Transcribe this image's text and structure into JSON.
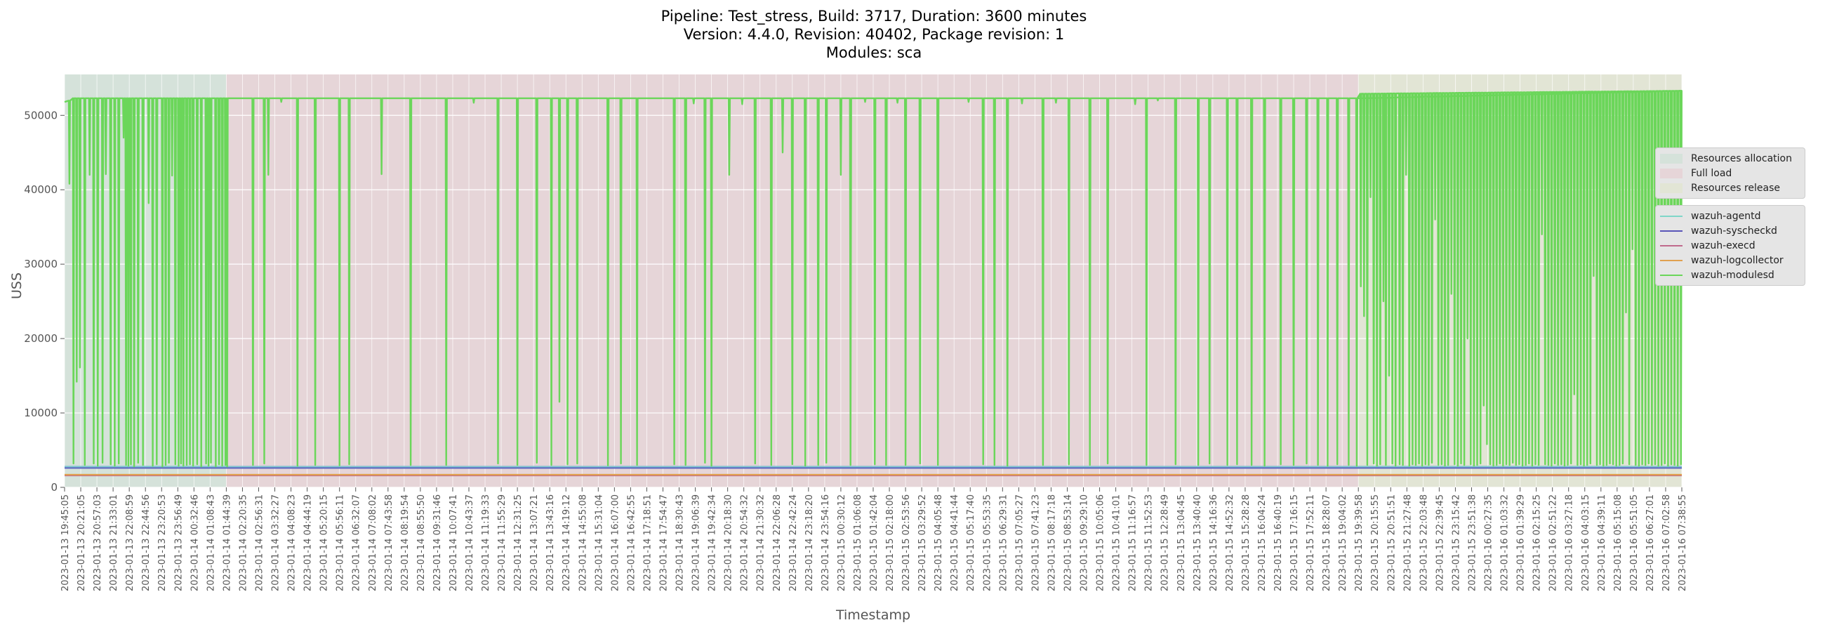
{
  "chart_data": {
    "type": "line",
    "title_lines": [
      "Pipeline: Test_stress, Build: 3717, Duration: 3600 minutes",
      "Version: 4.4.0, Revision: 40402, Package revision: 1",
      "Modules: sca"
    ],
    "xlabel": "Timestamp",
    "ylabel": "USS",
    "ylim": [
      0,
      55500
    ],
    "yticks": [
      0,
      10000,
      20000,
      30000,
      40000,
      50000
    ],
    "grid": true,
    "legend_placement": "right, outside plot",
    "x_ticks": [
      "2023-01-13 19:45:05",
      "2023-01-13 20:21:05",
      "2023-01-13 20:57:03",
      "2023-01-13 21:33:01",
      "2023-01-13 22:08:59",
      "2023-01-13 22:44:56",
      "2023-01-13 23:20:53",
      "2023-01-13 23:56:49",
      "2023-01-14 00:32:46",
      "2023-01-14 01:08:43",
      "2023-01-14 01:44:39",
      "2023-01-14 02:20:35",
      "2023-01-14 02:56:31",
      "2023-01-14 03:32:27",
      "2023-01-14 04:08:23",
      "2023-01-14 04:44:19",
      "2023-01-14 05:20:15",
      "2023-01-14 05:56:11",
      "2023-01-14 06:32:07",
      "2023-01-14 07:08:02",
      "2023-01-14 07:43:58",
      "2023-01-14 08:19:54",
      "2023-01-14 08:55:50",
      "2023-01-14 09:31:46",
      "2023-01-14 10:07:41",
      "2023-01-14 10:43:37",
      "2023-01-14 11:19:33",
      "2023-01-14 11:55:29",
      "2023-01-14 12:31:25",
      "2023-01-14 13:07:21",
      "2023-01-14 13:43:16",
      "2023-01-14 14:19:12",
      "2023-01-14 14:55:08",
      "2023-01-14 15:31:04",
      "2023-01-14 16:07:00",
      "2023-01-14 16:42:55",
      "2023-01-14 17:18:51",
      "2023-01-14 17:54:47",
      "2023-01-14 18:30:43",
      "2023-01-14 19:06:39",
      "2023-01-14 19:42:34",
      "2023-01-14 20:18:30",
      "2023-01-14 20:54:32",
      "2023-01-14 21:30:32",
      "2023-01-14 22:06:28",
      "2023-01-14 22:42:24",
      "2023-01-14 23:18:20",
      "2023-01-14 23:54:16",
      "2023-01-15 00:30:12",
      "2023-01-15 01:06:08",
      "2023-01-15 01:42:04",
      "2023-01-15 02:18:00",
      "2023-01-15 02:53:56",
      "2023-01-15 03:29:52",
      "2023-01-15 04:05:48",
      "2023-01-15 04:41:44",
      "2023-01-15 05:17:40",
      "2023-01-15 05:53:35",
      "2023-01-15 06:29:31",
      "2023-01-15 07:05:27",
      "2023-01-15 07:41:23",
      "2023-01-15 08:17:18",
      "2023-01-15 08:53:14",
      "2023-01-15 09:29:10",
      "2023-01-15 10:05:06",
      "2023-01-15 10:41:01",
      "2023-01-15 11:16:57",
      "2023-01-15 11:52:53",
      "2023-01-15 12:28:49",
      "2023-01-15 13:04:45",
      "2023-01-15 13:40:40",
      "2023-01-15 14:16:36",
      "2023-01-15 14:52:32",
      "2023-01-15 15:28:28",
      "2023-01-15 16:04:24",
      "2023-01-15 16:40:19",
      "2023-01-15 17:16:15",
      "2023-01-15 17:52:11",
      "2023-01-15 18:28:07",
      "2023-01-15 19:04:02",
      "2023-01-15 19:39:58",
      "2023-01-15 20:15:55",
      "2023-01-15 20:51:51",
      "2023-01-15 21:27:48",
      "2023-01-15 22:03:48",
      "2023-01-15 22:39:45",
      "2023-01-15 23:15:42",
      "2023-01-15 23:51:38",
      "2023-01-16 00:27:35",
      "2023-01-16 01:03:32",
      "2023-01-16 01:39:29",
      "2023-01-16 02:15:25",
      "2023-01-16 02:51:22",
      "2023-01-16 03:27:18",
      "2023-01-16 04:03:15",
      "2023-01-16 04:39:11",
      "2023-01-16 05:15:08",
      "2023-01-16 05:51:05",
      "2023-01-16 06:27:01",
      "2023-01-16 07:02:58",
      "2023-01-16 07:38:55"
    ],
    "phases": [
      {
        "name": "Resources allocation",
        "start_index": 0,
        "end_index": 10,
        "color": "#d5e2da"
      },
      {
        "name": "Full load",
        "start_index": 10,
        "end_index": 80,
        "color": "#e6d5d8"
      },
      {
        "name": "Resources release",
        "start_index": 80,
        "end_index": 100,
        "color": "#e2e5d5"
      }
    ],
    "series": [
      {
        "name": "wazuh-agentd",
        "color": "#7fd6c8",
        "baseline": 2750
      },
      {
        "name": "wazuh-syscheckd",
        "color": "#5a55b8",
        "baseline": 2600
      },
      {
        "name": "wazuh-execd",
        "color": "#c06a8c",
        "baseline": 1600
      },
      {
        "name": "wazuh-logcollector",
        "color": "#e0a050",
        "baseline": 1700
      },
      {
        "name": "wazuh-modulesd",
        "color": "#6bd65a",
        "plateau_segments": [
          {
            "from_index": 0,
            "to_index": 0.5,
            "from_value": 51800,
            "to_value": 52100
          },
          {
            "from_index": 0.5,
            "to_index": 80,
            "from_value": 52300,
            "to_value": 52300
          },
          {
            "from_index": 80,
            "to_index": 90,
            "from_value": 52900,
            "to_value": 53100
          },
          {
            "from_index": 90,
            "to_index": 100,
            "from_value": 53100,
            "to_value": 53300
          }
        ],
        "dips": [
          [
            0.3,
            40800
          ],
          [
            0.55,
            3200
          ],
          [
            0.75,
            14200
          ],
          [
            0.95,
            16100
          ],
          [
            1.25,
            3000
          ],
          [
            1.55,
            42000
          ],
          [
            1.8,
            3200
          ],
          [
            2.05,
            2900
          ],
          [
            2.35,
            3300
          ],
          [
            2.55,
            42100
          ],
          [
            2.85,
            3100
          ],
          [
            3.1,
            2900
          ],
          [
            3.35,
            3200
          ],
          [
            3.65,
            47000
          ],
          [
            3.8,
            3000
          ],
          [
            3.95,
            2900
          ],
          [
            4.1,
            3100
          ],
          [
            4.3,
            2800
          ],
          [
            4.55,
            3300
          ],
          [
            4.85,
            3000
          ],
          [
            5.2,
            38200
          ],
          [
            5.45,
            2900
          ],
          [
            5.7,
            3100
          ],
          [
            6.05,
            2800
          ],
          [
            6.25,
            3000
          ],
          [
            6.45,
            3300
          ],
          [
            6.65,
            41900
          ],
          [
            6.85,
            3100
          ],
          [
            7.05,
            2900
          ],
          [
            7.2,
            3200
          ],
          [
            7.35,
            2900
          ],
          [
            7.55,
            3000
          ],
          [
            7.75,
            3100
          ],
          [
            7.95,
            2900
          ],
          [
            8.2,
            3100
          ],
          [
            8.45,
            2800
          ],
          [
            8.75,
            3200
          ],
          [
            8.9,
            2900
          ],
          [
            9.05,
            3300
          ],
          [
            9.35,
            2800
          ],
          [
            9.55,
            3100
          ],
          [
            9.75,
            2900
          ],
          [
            9.95,
            3000
          ],
          [
            10.05,
            2800
          ],
          [
            11.65,
            3000
          ],
          [
            12.35,
            3200
          ],
          [
            12.6,
            42000
          ],
          [
            13.4,
            51800
          ],
          [
            14.4,
            2900
          ],
          [
            15.5,
            3000
          ],
          [
            17.0,
            2950
          ],
          [
            17.6,
            3100
          ],
          [
            19.6,
            42100
          ],
          [
            21.4,
            3000
          ],
          [
            23.6,
            3000
          ],
          [
            25.3,
            51700
          ],
          [
            26.8,
            3200
          ],
          [
            28.0,
            3000
          ],
          [
            29.2,
            3300
          ],
          [
            30.1,
            3000
          ],
          [
            30.6,
            11500
          ],
          [
            31.1,
            3100
          ],
          [
            31.7,
            3200
          ],
          [
            33.6,
            2950
          ],
          [
            34.4,
            3200
          ],
          [
            35.4,
            3000
          ],
          [
            37.7,
            3100
          ],
          [
            38.4,
            3000
          ],
          [
            38.9,
            51600
          ],
          [
            39.6,
            3300
          ],
          [
            40.0,
            2900
          ],
          [
            41.1,
            42000
          ],
          [
            41.9,
            51500
          ],
          [
            42.7,
            3200
          ],
          [
            43.7,
            3000
          ],
          [
            44.4,
            45000
          ],
          [
            45.0,
            3100
          ],
          [
            45.8,
            2900
          ],
          [
            46.6,
            3000
          ],
          [
            47.1,
            3300
          ],
          [
            48.0,
            42000
          ],
          [
            48.6,
            3000
          ],
          [
            49.5,
            51800
          ],
          [
            50.1,
            3100
          ],
          [
            50.8,
            3000
          ],
          [
            51.5,
            51700
          ],
          [
            52.0,
            3000
          ],
          [
            52.9,
            3200
          ],
          [
            54.0,
            3000
          ],
          [
            55.9,
            51800
          ],
          [
            56.8,
            3100
          ],
          [
            57.5,
            3000
          ],
          [
            58.3,
            2900
          ],
          [
            59.2,
            51600
          ],
          [
            60.5,
            3000
          ],
          [
            61.3,
            51700
          ],
          [
            62.1,
            3100
          ],
          [
            63.4,
            3000
          ],
          [
            64.5,
            3200
          ],
          [
            66.2,
            51500
          ],
          [
            66.9,
            3000
          ],
          [
            67.6,
            52000
          ],
          [
            68.7,
            3100
          ],
          [
            70.1,
            3000
          ],
          [
            70.8,
            3200
          ],
          [
            71.9,
            3000
          ],
          [
            72.5,
            3100
          ],
          [
            73.4,
            3000
          ],
          [
            74.2,
            2900
          ],
          [
            75.2,
            3100
          ],
          [
            76.0,
            3000
          ],
          [
            76.8,
            3200
          ],
          [
            77.5,
            3000
          ],
          [
            78.1,
            2900
          ],
          [
            78.7,
            3100
          ],
          [
            79.4,
            3000
          ],
          [
            79.9,
            2900
          ],
          [
            80.15,
            27000
          ],
          [
            80.35,
            23000
          ],
          [
            80.55,
            3000
          ],
          [
            80.75,
            39000
          ],
          [
            80.95,
            3200
          ],
          [
            81.15,
            2900
          ],
          [
            81.35,
            3100
          ],
          [
            81.55,
            25000
          ],
          [
            81.7,
            3000
          ],
          [
            81.9,
            15000
          ],
          [
            82.1,
            3200
          ],
          [
            82.3,
            2900
          ],
          [
            82.55,
            3100
          ],
          [
            82.75,
            3000
          ],
          [
            82.95,
            42000
          ],
          [
            83.15,
            2900
          ],
          [
            83.35,
            3100
          ],
          [
            83.55,
            3000
          ],
          [
            83.75,
            3200
          ],
          [
            83.95,
            2900
          ],
          [
            84.15,
            3100
          ],
          [
            84.35,
            3000
          ],
          [
            84.55,
            3300
          ],
          [
            84.75,
            36000
          ],
          [
            84.95,
            3000
          ],
          [
            85.15,
            3100
          ],
          [
            85.35,
            2900
          ],
          [
            85.55,
            3000
          ],
          [
            85.75,
            26000
          ],
          [
            85.95,
            3100
          ],
          [
            86.15,
            2900
          ],
          [
            86.35,
            3200
          ],
          [
            86.55,
            3000
          ],
          [
            86.75,
            20000
          ],
          [
            86.95,
            3100
          ],
          [
            87.15,
            2900
          ],
          [
            87.35,
            3000
          ],
          [
            87.55,
            3200
          ],
          [
            87.75,
            11000
          ],
          [
            87.95,
            5800
          ],
          [
            88.15,
            3100
          ],
          [
            88.35,
            2900
          ],
          [
            88.55,
            3000
          ],
          [
            88.75,
            3200
          ],
          [
            88.95,
            2900
          ],
          [
            89.15,
            3100
          ],
          [
            89.35,
            3000
          ],
          [
            89.55,
            3300
          ],
          [
            89.75,
            3000
          ],
          [
            89.95,
            3100
          ],
          [
            90.15,
            2900
          ],
          [
            90.35,
            3000
          ],
          [
            90.55,
            3200
          ],
          [
            90.75,
            2900
          ],
          [
            90.95,
            3100
          ],
          [
            91.15,
            3000
          ],
          [
            91.35,
            34000
          ],
          [
            91.55,
            3100
          ],
          [
            91.75,
            3000
          ],
          [
            91.95,
            2900
          ],
          [
            92.15,
            3200
          ],
          [
            92.35,
            3000
          ],
          [
            92.55,
            3100
          ],
          [
            92.75,
            2900
          ],
          [
            92.95,
            3000
          ],
          [
            93.15,
            3200
          ],
          [
            93.35,
            12500
          ],
          [
            93.55,
            3000
          ],
          [
            93.75,
            3100
          ],
          [
            93.95,
            2900
          ],
          [
            94.15,
            3000
          ],
          [
            94.35,
            3200
          ],
          [
            94.55,
            28400
          ],
          [
            94.75,
            3000
          ],
          [
            94.95,
            3100
          ],
          [
            95.15,
            2900
          ],
          [
            95.35,
            3000
          ],
          [
            95.55,
            3200
          ],
          [
            95.75,
            3100
          ],
          [
            95.95,
            2900
          ],
          [
            96.15,
            3000
          ],
          [
            96.35,
            3200
          ],
          [
            96.55,
            23500
          ],
          [
            96.75,
            3100
          ],
          [
            96.95,
            32000
          ],
          [
            97.15,
            3000
          ],
          [
            97.35,
            2900
          ],
          [
            97.55,
            3100
          ],
          [
            97.75,
            3000
          ],
          [
            97.95,
            3200
          ],
          [
            98.15,
            3000
          ],
          [
            98.35,
            3100
          ],
          [
            98.55,
            2900
          ],
          [
            98.75,
            3000
          ],
          [
            98.95,
            3200
          ],
          [
            99.15,
            2900
          ],
          [
            99.35,
            3100
          ],
          [
            99.55,
            3000
          ],
          [
            99.75,
            2900
          ],
          [
            99.95,
            3100
          ]
        ]
      }
    ]
  }
}
